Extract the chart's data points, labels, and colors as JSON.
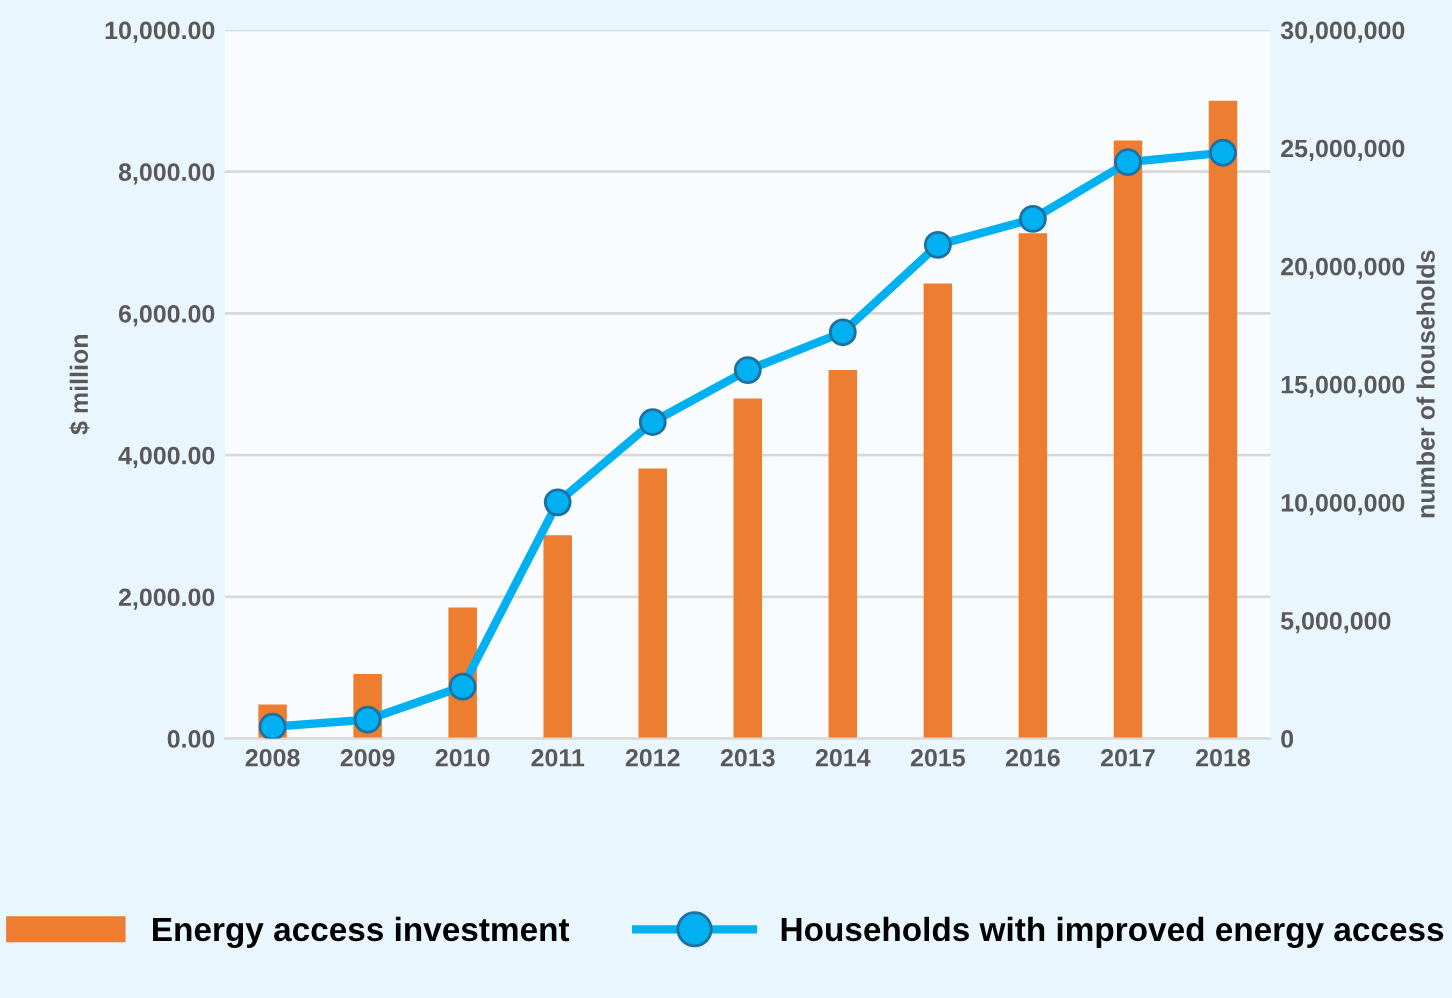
{
  "chart_data": {
    "type": "bar",
    "categories": [
      "2008",
      "2009",
      "2010",
      "2011",
      "2012",
      "2013",
      "2014",
      "2015",
      "2016",
      "2017",
      "2018"
    ],
    "ylabel": "$ million",
    "y2label": "number of households",
    "ylim": [
      0,
      10000
    ],
    "yticks": [
      {
        "value": 0,
        "label": "0.00"
      },
      {
        "value": 2000,
        "label": "2,000.00"
      },
      {
        "value": 4000,
        "label": "4,000.00"
      },
      {
        "value": 6000,
        "label": "6,000.00"
      },
      {
        "value": 8000,
        "label": "8,000.00"
      },
      {
        "value": 10000,
        "label": "10,000.00"
      }
    ],
    "y2lim": [
      0,
      30000000
    ],
    "y2ticks": [
      0,
      {
        "value": 5000000,
        "label": "5,000,000"
      },
      {
        "value": 10000000,
        "label": "10,000,000"
      },
      {
        "value": 15000000,
        "label": "15,000,000"
      },
      {
        "value": 20000000,
        "label": "20,000,000"
      },
      {
        "value": 25000000,
        "label": "25,000,000"
      },
      {
        "value": 30000000,
        "label": "30,000,000"
      }
    ],
    "grid": "y",
    "legend": "bottom",
    "series": [
      {
        "name": "Energy access investment",
        "color": "#ed7d31",
        "values": [
          480,
          910,
          1850,
          2870,
          3810,
          4800,
          5200,
          6420,
          7130,
          8440,
          9000
        ]
      },
      {
        "name": "Households with improved energy access",
        "type": "line",
        "axis": "y2",
        "color": "#00b0f0",
        "marker": "circle",
        "values": [
          500000,
          800000,
          2200000,
          10000000,
          13400000,
          15600000,
          17200000,
          20900000,
          22000000,
          24400000,
          24800000
        ]
      }
    ]
  }
}
